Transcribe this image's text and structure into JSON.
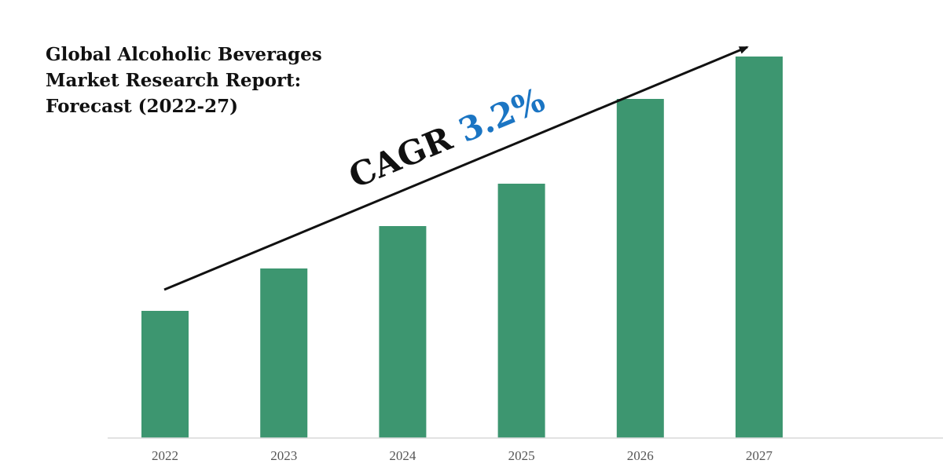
{
  "chart_data": {
    "type": "bar",
    "title_lines": [
      "Global Alcoholic Beverages",
      "Market Research Report:",
      "Forecast (2022-27)"
    ],
    "categories": [
      "2022",
      "2023",
      "2024",
      "2025",
      "2026",
      "2027"
    ],
    "values": [
      30,
      40,
      50,
      60,
      80,
      90
    ],
    "xlabel": "",
    "ylabel": "",
    "ylim": [
      0,
      100
    ],
    "grid": false,
    "annotation": {
      "prefix": "CAGR ",
      "value": "3.2%",
      "arrow": "rising"
    },
    "colors": {
      "bar": "#3d9670",
      "annotation_value": "#1b75c3",
      "annotation_prefix": "#111111",
      "axis": "#d9d9d9",
      "arrow": "#111111"
    }
  }
}
